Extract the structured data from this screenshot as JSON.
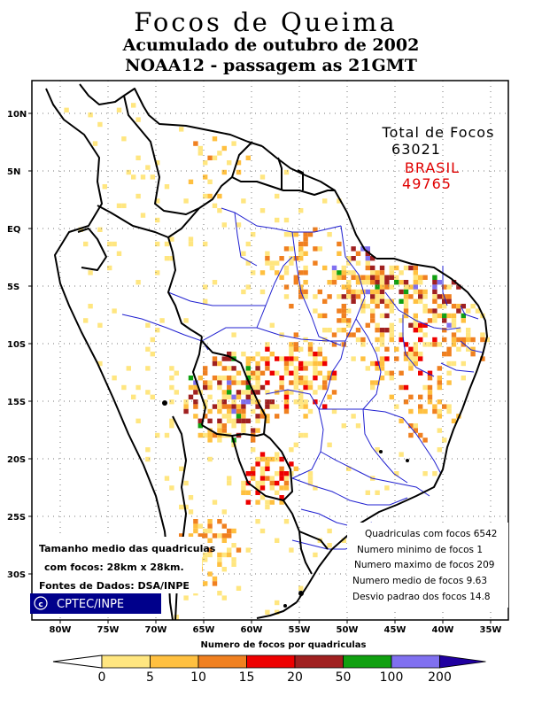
{
  "title": {
    "line1": "Focos de Queima",
    "line2": "Acumulado de outubro de 2002",
    "line3": "NOAA12 - passagem as 21GMT"
  },
  "totals": {
    "label": "Total de Focos",
    "total": "63021",
    "brasil_label": "BRASIL",
    "brasil": "49765",
    "brasil_color": "#e00000"
  },
  "stats": [
    "Quadriculas com focos 6542",
    "Numero minimo de focos 1",
    "Numero maximo de focos 209",
    "Numero medio de focos 9.63",
    "Desvio padrao dos focos 14.8"
  ],
  "info": {
    "size_line1": "Tamanho medio das quadriculas",
    "size_line2": "com focos: 28km x 28km.",
    "source": "Fontes de Dados: DSA/INPE"
  },
  "logo": {
    "text": "CPTEC/INPE",
    "icon": "copyright-icon",
    "bg": "#00008b"
  },
  "axes": {
    "lat_labels": [
      "10N",
      "5N",
      "EQ",
      "5S",
      "10S",
      "15S",
      "20S",
      "25S",
      "30S"
    ],
    "lon_labels": [
      "80W",
      "75W",
      "70W",
      "65W",
      "60W",
      "55W",
      "50W",
      "45W",
      "40W",
      "35W"
    ]
  },
  "legend": {
    "title": "Numero de focos por quadriculas",
    "ticks": [
      "0",
      "5",
      "10",
      "15",
      "20",
      "50",
      "100",
      "200"
    ],
    "colors": [
      "#ffe680",
      "#ffc040",
      "#f08020",
      "#ee0000",
      "#a02020",
      "#10a010",
      "#8070f0",
      "#2000a0"
    ]
  },
  "colors": {
    "boundary": "#000000",
    "state_lines": "#2020d0",
    "grid": "#777777"
  }
}
